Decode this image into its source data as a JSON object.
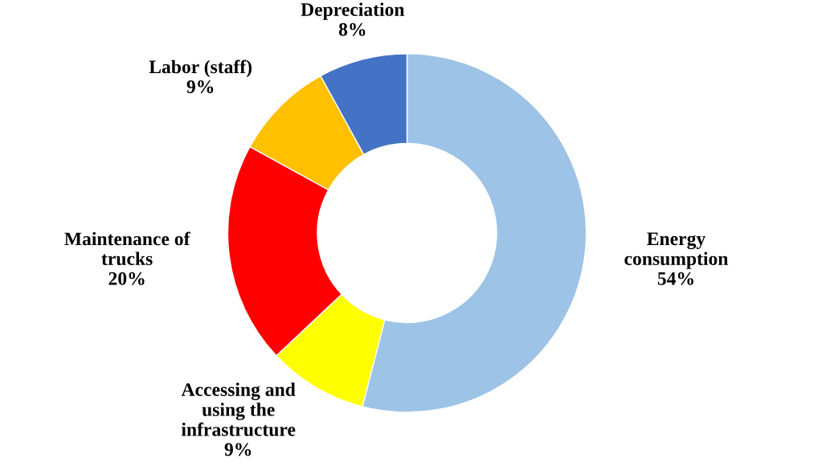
{
  "chart_data": {
    "type": "donut",
    "categories": [
      "Energy consumption",
      "Accessing and using the infrastructure",
      "Maintenance of trucks",
      "Labor (staff)",
      "Depreciation"
    ],
    "values": [
      54,
      9,
      20,
      9,
      8
    ],
    "colors": [
      "#9dc3e6",
      "#ffff00",
      "#ff0000",
      "#ffc000",
      "#4472c4"
    ],
    "value_labels": [
      "54%",
      "9%",
      "20%",
      "9%",
      "8%"
    ],
    "legend": false
  }
}
